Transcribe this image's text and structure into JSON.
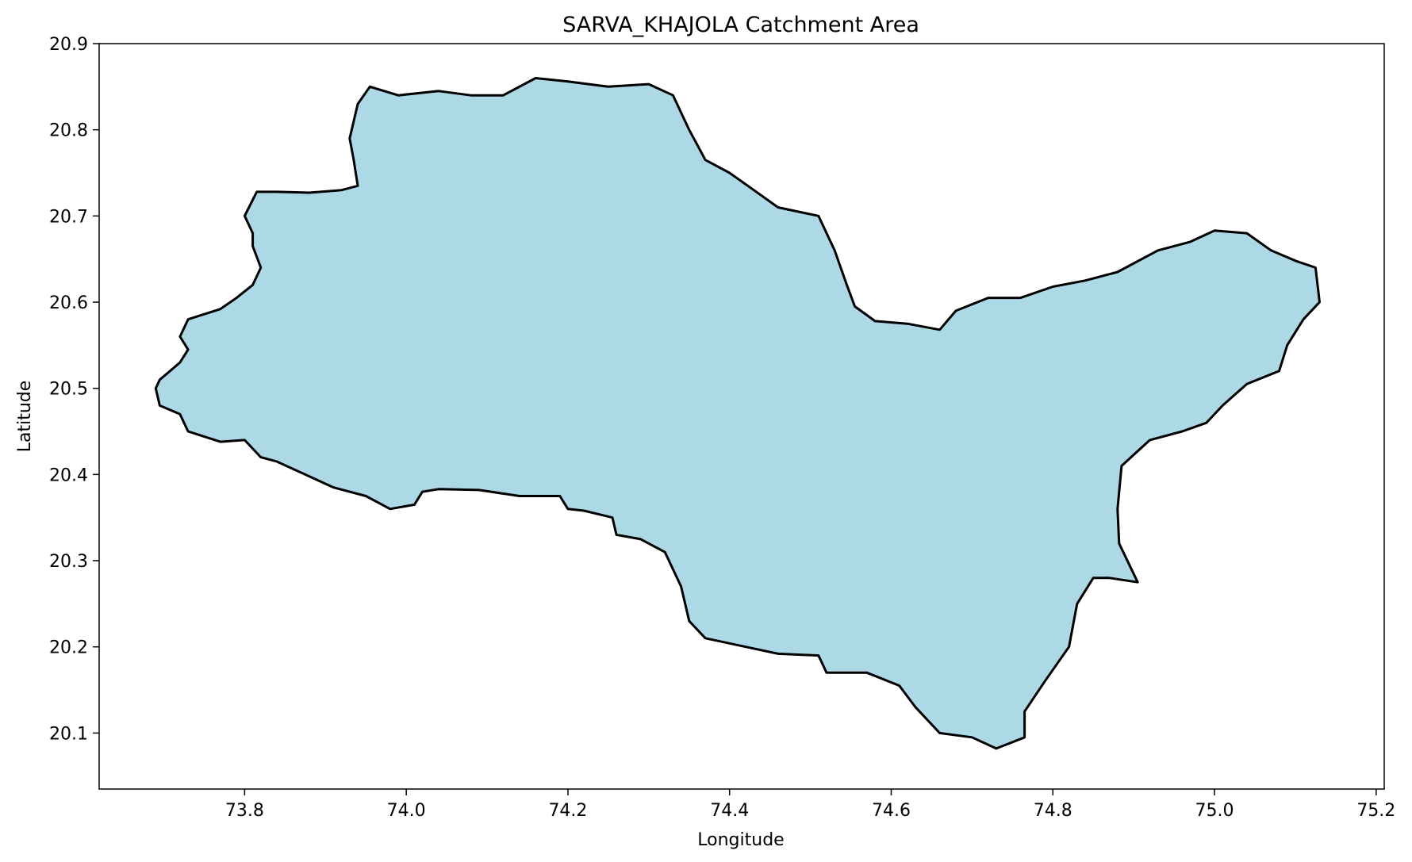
{
  "chart_data": {
    "type": "map",
    "title": "SARVA_KHAJOLA Catchment Area",
    "xlabel": "Longitude",
    "ylabel": "Latitude",
    "xlim": [
      73.62,
      75.21
    ],
    "ylim": [
      20.035,
      20.9
    ],
    "xticks": [
      73.8,
      74.0,
      74.2,
      74.4,
      74.6,
      74.8,
      75.0,
      75.2
    ],
    "yticks": [
      20.1,
      20.2,
      20.3,
      20.4,
      20.5,
      20.6,
      20.7,
      20.8,
      20.9
    ],
    "grid": false,
    "fill_color": "#add8e6",
    "edge_color": "#000000",
    "boundary": [
      [
        73.695,
        20.51
      ],
      [
        73.72,
        20.53
      ],
      [
        73.73,
        20.545
      ],
      [
        73.72,
        20.56
      ],
      [
        73.73,
        20.58
      ],
      [
        73.77,
        20.592
      ],
      [
        73.79,
        20.605
      ],
      [
        73.81,
        20.62
      ],
      [
        73.82,
        20.64
      ],
      [
        73.81,
        20.665
      ],
      [
        73.81,
        20.68
      ],
      [
        73.8,
        20.7
      ],
      [
        73.815,
        20.728
      ],
      [
        73.84,
        20.728
      ],
      [
        73.88,
        20.727
      ],
      [
        73.92,
        20.73
      ],
      [
        73.94,
        20.735
      ],
      [
        73.935,
        20.765
      ],
      [
        73.93,
        20.79
      ],
      [
        73.94,
        20.83
      ],
      [
        73.955,
        20.85
      ],
      [
        73.99,
        20.84
      ],
      [
        74.04,
        20.845
      ],
      [
        74.08,
        20.84
      ],
      [
        74.12,
        20.84
      ],
      [
        74.16,
        20.86
      ],
      [
        74.2,
        20.856
      ],
      [
        74.25,
        20.85
      ],
      [
        74.3,
        20.853
      ],
      [
        74.33,
        20.84
      ],
      [
        74.35,
        20.8
      ],
      [
        74.37,
        20.765
      ],
      [
        74.4,
        20.75
      ],
      [
        74.43,
        20.73
      ],
      [
        74.46,
        20.71
      ],
      [
        74.51,
        20.7
      ],
      [
        74.53,
        20.66
      ],
      [
        74.545,
        20.62
      ],
      [
        74.555,
        20.595
      ],
      [
        74.58,
        20.578
      ],
      [
        74.62,
        20.575
      ],
      [
        74.66,
        20.568
      ],
      [
        74.68,
        20.59
      ],
      [
        74.72,
        20.605
      ],
      [
        74.76,
        20.605
      ],
      [
        74.8,
        20.618
      ],
      [
        74.84,
        20.625
      ],
      [
        74.88,
        20.635
      ],
      [
        74.93,
        20.66
      ],
      [
        74.97,
        20.67
      ],
      [
        75.0,
        20.683
      ],
      [
        75.04,
        20.68
      ],
      [
        75.07,
        20.66
      ],
      [
        75.1,
        20.648
      ],
      [
        75.125,
        20.64
      ],
      [
        75.13,
        20.6
      ],
      [
        75.11,
        20.58
      ],
      [
        75.09,
        20.55
      ],
      [
        75.08,
        20.52
      ],
      [
        75.04,
        20.505
      ],
      [
        75.01,
        20.48
      ],
      [
        74.99,
        20.46
      ],
      [
        74.96,
        20.45
      ],
      [
        74.92,
        20.44
      ],
      [
        74.885,
        20.41
      ],
      [
        74.88,
        20.36
      ],
      [
        74.882,
        20.32
      ],
      [
        74.905,
        20.275
      ],
      [
        74.87,
        20.28
      ],
      [
        74.85,
        20.28
      ],
      [
        74.83,
        20.25
      ],
      [
        74.82,
        20.2
      ],
      [
        74.79,
        20.16
      ],
      [
        74.765,
        20.125
      ],
      [
        74.765,
        20.095
      ],
      [
        74.73,
        20.082
      ],
      [
        74.7,
        20.095
      ],
      [
        74.66,
        20.1
      ],
      [
        74.63,
        20.13
      ],
      [
        74.61,
        20.155
      ],
      [
        74.57,
        20.17
      ],
      [
        74.52,
        20.17
      ],
      [
        74.51,
        20.19
      ],
      [
        74.46,
        20.192
      ],
      [
        74.42,
        20.2
      ],
      [
        74.37,
        20.21
      ],
      [
        74.35,
        20.23
      ],
      [
        74.34,
        20.27
      ],
      [
        74.32,
        20.31
      ],
      [
        74.29,
        20.325
      ],
      [
        74.26,
        20.33
      ],
      [
        74.255,
        20.35
      ],
      [
        74.22,
        20.358
      ],
      [
        74.2,
        20.36
      ],
      [
        74.19,
        20.375
      ],
      [
        74.14,
        20.375
      ],
      [
        74.09,
        20.382
      ],
      [
        74.04,
        20.383
      ],
      [
        74.02,
        20.38
      ],
      [
        74.01,
        20.365
      ],
      [
        73.98,
        20.36
      ],
      [
        73.95,
        20.375
      ],
      [
        73.91,
        20.385
      ],
      [
        73.875,
        20.4
      ],
      [
        73.84,
        20.415
      ],
      [
        73.82,
        20.42
      ],
      [
        73.8,
        20.44
      ],
      [
        73.77,
        20.438
      ],
      [
        73.73,
        20.45
      ],
      [
        73.72,
        20.47
      ],
      [
        73.695,
        20.48
      ],
      [
        73.69,
        20.5
      ],
      [
        73.695,
        20.51
      ]
    ]
  }
}
